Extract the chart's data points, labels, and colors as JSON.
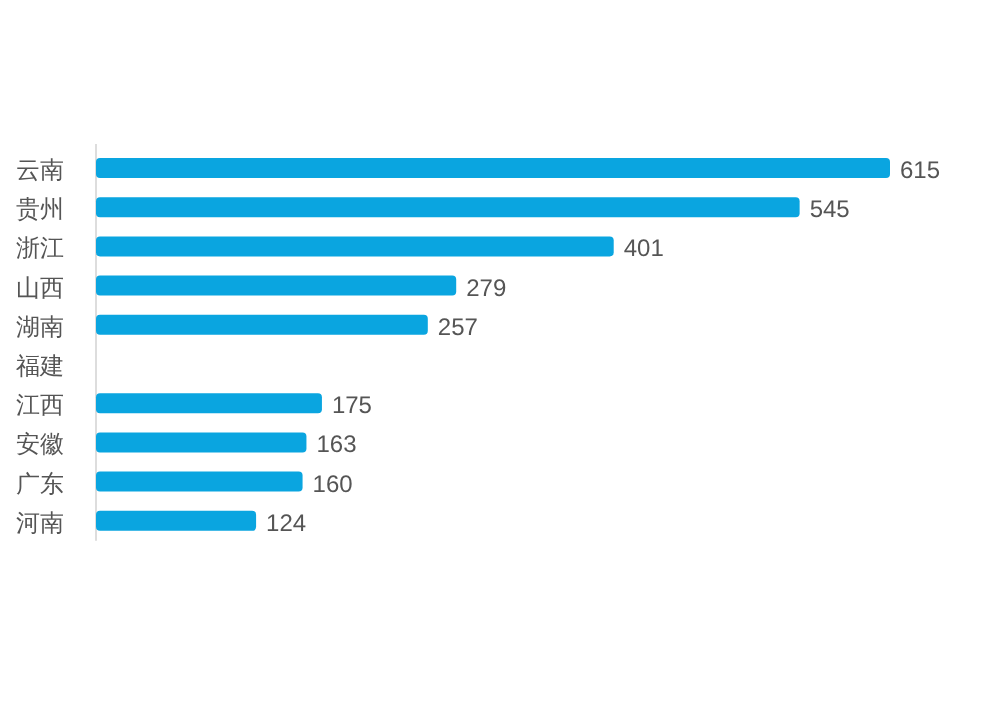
{
  "chart_data": {
    "type": "bar",
    "orientation": "horizontal",
    "categories": [
      "云南",
      "贵州",
      "浙江",
      "山西",
      "湖南",
      "福建",
      "江西",
      "安徽",
      "广东",
      "河南"
    ],
    "values": [
      615,
      545,
      401,
      279,
      257,
      null,
      175,
      163,
      160,
      124
    ],
    "color": "#0aa5e0",
    "data_labels": true
  }
}
